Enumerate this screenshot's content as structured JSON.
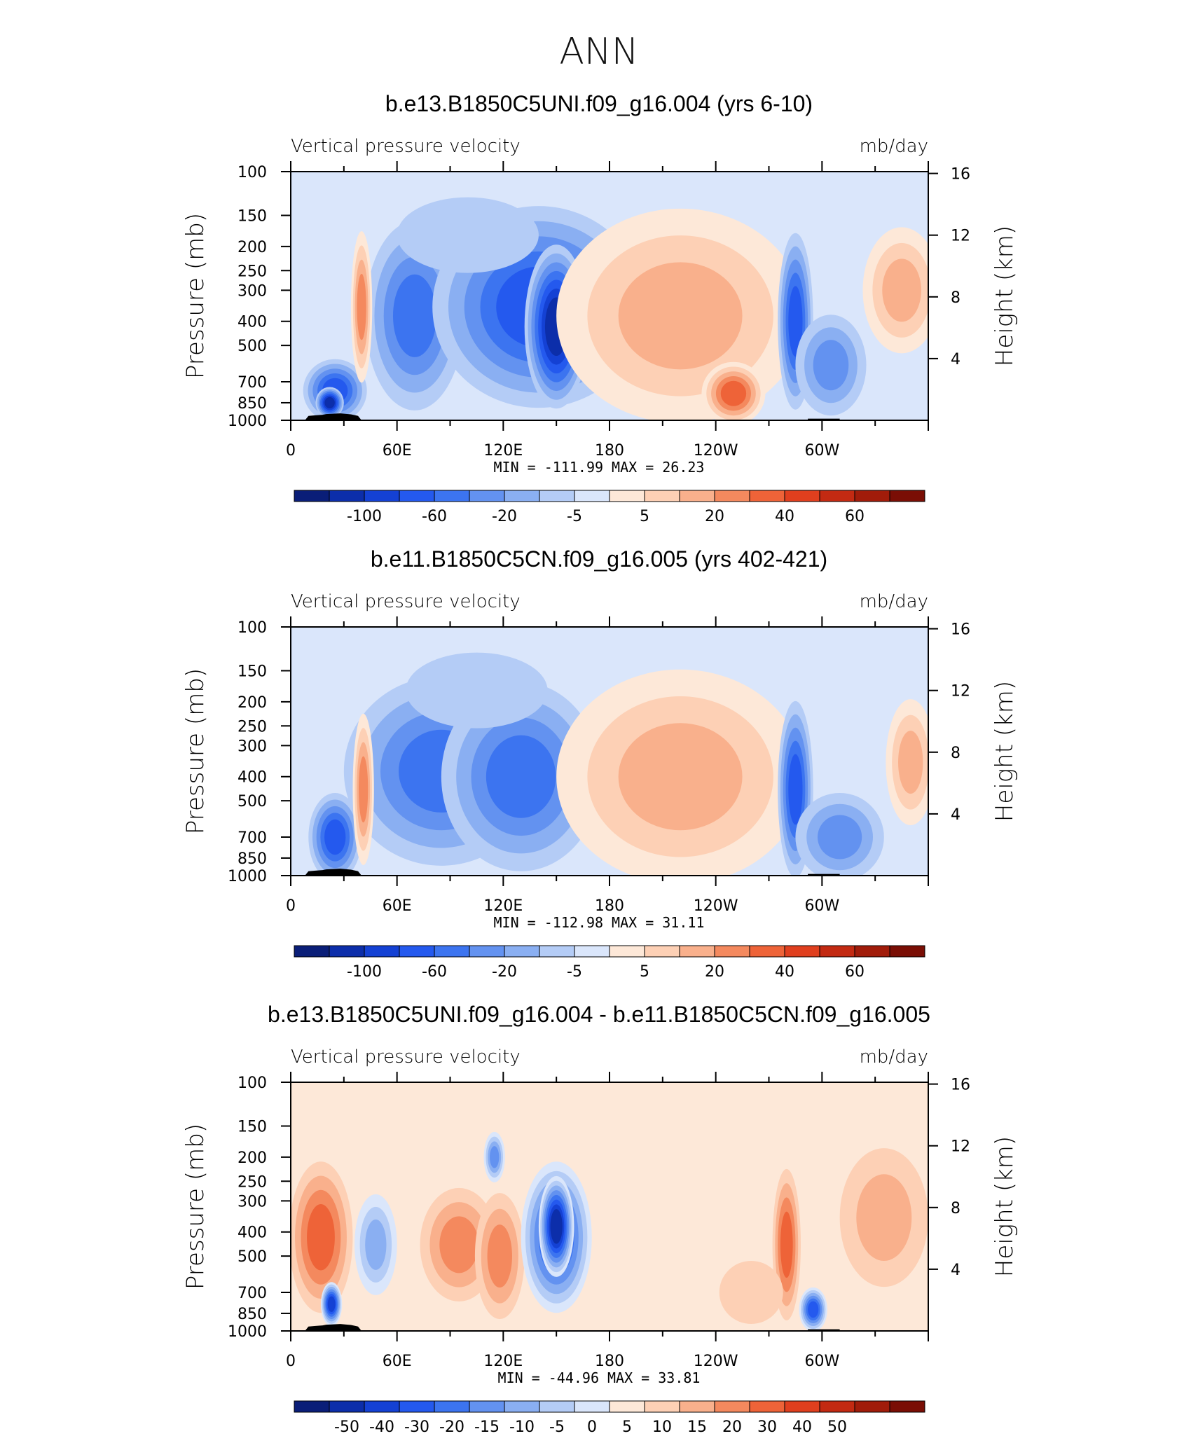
{
  "figure": {
    "title": "ANN",
    "colors": {
      "frame": "#000000",
      "land_mask": "#000000"
    }
  },
  "chart_data": [
    {
      "type": "heatmap",
      "title": "b.e13.B1850C5UNI.f09_g16.004 (yrs 6-10)",
      "subtitle_left": "Vertical pressure velocity",
      "subtitle_right": "mb/day",
      "ylabel": "Pressure (mb)",
      "ylabel_right": "Height (km)",
      "xticks": [
        "0",
        "60E",
        "120E",
        "180",
        "120W",
        "60W"
      ],
      "yticks": [
        "100",
        "150",
        "200",
        "250",
        "300",
        "400",
        "500",
        "700",
        "850",
        "1000"
      ],
      "yticks_right": [
        "16",
        "12",
        "8",
        "4"
      ],
      "xlim": [
        0,
        360
      ],
      "ylim": [
        1000,
        100
      ],
      "y_scale": "log",
      "min_label": "MIN =",
      "min": "-111.99",
      "max_label": "MAX =",
      "max": "26.23",
      "colorbar": {
        "colors": [
          "#0a1e78",
          "#0c2eaa",
          "#1441d4",
          "#2459ee",
          "#3c74f0",
          "#6392f0",
          "#8aaff2",
          "#b4ccf6",
          "#dae6fb",
          "#fde8d8",
          "#fdd0b5",
          "#f9b08c",
          "#f4895e",
          "#ee6338",
          "#e03f1e",
          "#c32a12",
          "#a11c0a",
          "#7a0e05"
        ],
        "labels": [
          "-100",
          "-60",
          "-20",
          "-5",
          "5",
          "20",
          "40",
          "60"
        ]
      },
      "regions": [
        {
          "lon": 70,
          "lon_w": 28,
          "p": 380,
          "p_h": 1.5,
          "level": 4
        },
        {
          "lon": 140,
          "lon_w": 60,
          "p": 350,
          "p_h": 1.6,
          "level": 3
        },
        {
          "lon": 150,
          "lon_w": 18,
          "p": 420,
          "p_h": 1.3,
          "level": 1
        },
        {
          "lon": 100,
          "lon_w": 40,
          "p": 180,
          "p_h": 0.6,
          "level": 7
        },
        {
          "lon": 220,
          "lon_w": 70,
          "p": 380,
          "p_h": 1.7,
          "level": 11
        },
        {
          "lon": 250,
          "lon_w": 18,
          "p": 780,
          "p_h": 0.5,
          "level": 13
        },
        {
          "lon": 285,
          "lon_w": 10,
          "p": 400,
          "p_h": 1.4,
          "level": 3
        },
        {
          "lon": 305,
          "lon_w": 20,
          "p": 600,
          "p_h": 0.8,
          "level": 5
        },
        {
          "lon": 345,
          "lon_w": 22,
          "p": 300,
          "p_h": 1.0,
          "level": 11
        },
        {
          "lon": 25,
          "lon_w": 18,
          "p": 760,
          "p_h": 0.5,
          "level": 3
        },
        {
          "lon": 22,
          "lon_w": 8,
          "p": 850,
          "p_h": 0.25,
          "level": 1
        },
        {
          "lon": 40,
          "lon_w": 6,
          "p": 350,
          "p_h": 1.2,
          "level": 12
        }
      ]
    },
    {
      "type": "heatmap",
      "title": "b.e11.B1850C5CN.f09_g16.005 (yrs 402-421)",
      "subtitle_left": "Vertical pressure velocity",
      "subtitle_right": "mb/day",
      "ylabel": "Pressure (mb)",
      "ylabel_right": "Height (km)",
      "xticks": [
        "0",
        "60E",
        "120E",
        "180",
        "120W",
        "60W"
      ],
      "yticks": [
        "100",
        "150",
        "200",
        "250",
        "300",
        "400",
        "500",
        "700",
        "850",
        "1000"
      ],
      "yticks_right": [
        "16",
        "12",
        "8",
        "4"
      ],
      "xlim": [
        0,
        360
      ],
      "ylim": [
        1000,
        100
      ],
      "y_scale": "log",
      "min_label": "MIN =",
      "min": "-112.98",
      "max_label": "MAX =",
      "max": "31.11",
      "colorbar": {
        "colors": [
          "#0a1e78",
          "#0c2eaa",
          "#1441d4",
          "#2459ee",
          "#3c74f0",
          "#6392f0",
          "#8aaff2",
          "#b4ccf6",
          "#dae6fb",
          "#fde8d8",
          "#fdd0b5",
          "#f9b08c",
          "#f4895e",
          "#ee6338",
          "#e03f1e",
          "#c32a12",
          "#a11c0a",
          "#7a0e05"
        ],
        "labels": [
          "-100",
          "-60",
          "-20",
          "-5",
          "5",
          "20",
          "40",
          "60"
        ]
      },
      "regions": [
        {
          "lon": 85,
          "lon_w": 55,
          "p": 380,
          "p_h": 1.5,
          "level": 4
        },
        {
          "lon": 130,
          "lon_w": 45,
          "p": 400,
          "p_h": 1.5,
          "level": 4
        },
        {
          "lon": 105,
          "lon_w": 40,
          "p": 180,
          "p_h": 0.6,
          "level": 7
        },
        {
          "lon": 220,
          "lon_w": 70,
          "p": 400,
          "p_h": 1.7,
          "level": 11
        },
        {
          "lon": 285,
          "lon_w": 10,
          "p": 450,
          "p_h": 1.4,
          "level": 3
        },
        {
          "lon": 310,
          "lon_w": 25,
          "p": 700,
          "p_h": 0.7,
          "level": 5
        },
        {
          "lon": 350,
          "lon_w": 14,
          "p": 350,
          "p_h": 1.0,
          "level": 11
        },
        {
          "lon": 25,
          "lon_w": 15,
          "p": 700,
          "p_h": 0.7,
          "level": 3
        },
        {
          "lon": 41,
          "lon_w": 6,
          "p": 450,
          "p_h": 1.2,
          "level": 12
        }
      ]
    },
    {
      "type": "heatmap",
      "title": "b.e13.B1850C5UNI.f09_g16.004 - b.e11.B1850C5CN.f09_g16.005",
      "subtitle_left": "Vertical pressure velocity",
      "subtitle_right": "mb/day",
      "ylabel": "Pressure (mb)",
      "ylabel_right": "Height (km)",
      "xticks": [
        "0",
        "60E",
        "120E",
        "180",
        "120W",
        "60W"
      ],
      "yticks": [
        "100",
        "150",
        "200",
        "250",
        "300",
        "400",
        "500",
        "700",
        "850",
        "1000"
      ],
      "yticks_right": [
        "16",
        "12",
        "8",
        "4"
      ],
      "xlim": [
        0,
        360
      ],
      "ylim": [
        1000,
        100
      ],
      "y_scale": "log",
      "min_label": "MIN =",
      "min": "-44.96",
      "max_label": "MAX =",
      "max": "33.81",
      "colorbar": {
        "colors": [
          "#0a1e78",
          "#0c2eaa",
          "#1441d4",
          "#2459ee",
          "#3c74f0",
          "#6392f0",
          "#8aaff2",
          "#b4ccf6",
          "#dae6fb",
          "#fde8d8",
          "#fdd0b5",
          "#f9b08c",
          "#f4895e",
          "#ee6338",
          "#e03f1e",
          "#c32a12",
          "#a11c0a",
          "#7a0e05"
        ],
        "labels": [
          "-50",
          "-40",
          "-30",
          "-20",
          "-15",
          "-10",
          "-5",
          "0",
          "5",
          "10",
          "15",
          "20",
          "30",
          "40",
          "50"
        ]
      },
      "regions": [
        {
          "lon": 17,
          "lon_w": 18,
          "p": 420,
          "p_h": 1.2,
          "level": 13
        },
        {
          "lon": 23,
          "lon_w": 6,
          "p": 780,
          "p_h": 0.35,
          "level": 2
        },
        {
          "lon": 48,
          "lon_w": 12,
          "p": 450,
          "p_h": 0.8,
          "level": 6
        },
        {
          "lon": 95,
          "lon_w": 22,
          "p": 450,
          "p_h": 0.9,
          "level": 12
        },
        {
          "lon": 118,
          "lon_w": 14,
          "p": 500,
          "p_h": 1.0,
          "level": 12
        },
        {
          "lon": 150,
          "lon_w": 20,
          "p": 420,
          "p_h": 1.2,
          "level": 3
        },
        {
          "lon": 150,
          "lon_w": 10,
          "p": 380,
          "p_h": 0.8,
          "level": 1
        },
        {
          "lon": 115,
          "lon_w": 6,
          "p": 200,
          "p_h": 0.4,
          "level": 5
        },
        {
          "lon": 280,
          "lon_w": 8,
          "p": 450,
          "p_h": 1.2,
          "level": 13
        },
        {
          "lon": 295,
          "lon_w": 8,
          "p": 820,
          "p_h": 0.35,
          "level": 3
        },
        {
          "lon": 335,
          "lon_w": 25,
          "p": 350,
          "p_h": 1.1,
          "level": 11
        },
        {
          "lon": 260,
          "lon_w": 18,
          "p": 700,
          "p_h": 0.5,
          "level": 10
        }
      ]
    }
  ]
}
